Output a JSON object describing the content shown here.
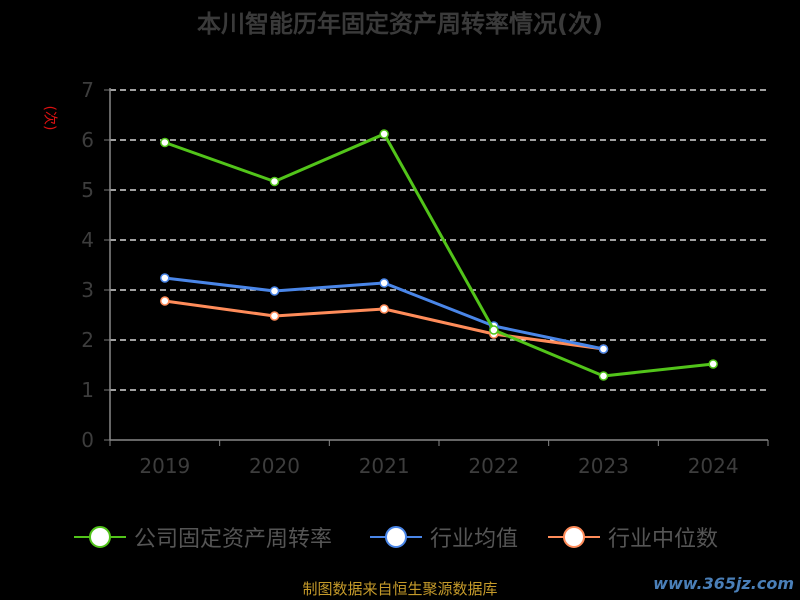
{
  "chart_data": {
    "type": "line",
    "title": "本川智能历年固定资产周转率情况(次)",
    "unit_label": "(次)",
    "categories": [
      "2019",
      "2020",
      "2021",
      "2022",
      "2023",
      "2024"
    ],
    "ylim": [
      0,
      7
    ],
    "yticks": [
      "0",
      "1",
      "2",
      "3",
      "4",
      "5",
      "6",
      "7"
    ],
    "grid": true,
    "legend_position": "bottom",
    "series": [
      {
        "name": "公司固定资产周转率",
        "color": "#52c41a",
        "values": [
          5.95,
          5.17,
          6.12,
          2.2,
          1.28,
          1.52
        ]
      },
      {
        "name": "行业均值",
        "color": "#4a86e8",
        "values": [
          3.24,
          2.98,
          3.14,
          2.28,
          1.82,
          null
        ]
      },
      {
        "name": "行业中位数",
        "color": "#ff8c5a",
        "values": [
          2.78,
          2.48,
          2.62,
          2.12,
          1.82,
          null
        ]
      }
    ]
  },
  "footer": {
    "source": "制图数据来自恒生聚源数据库",
    "watermark": "www.365jz.com"
  }
}
